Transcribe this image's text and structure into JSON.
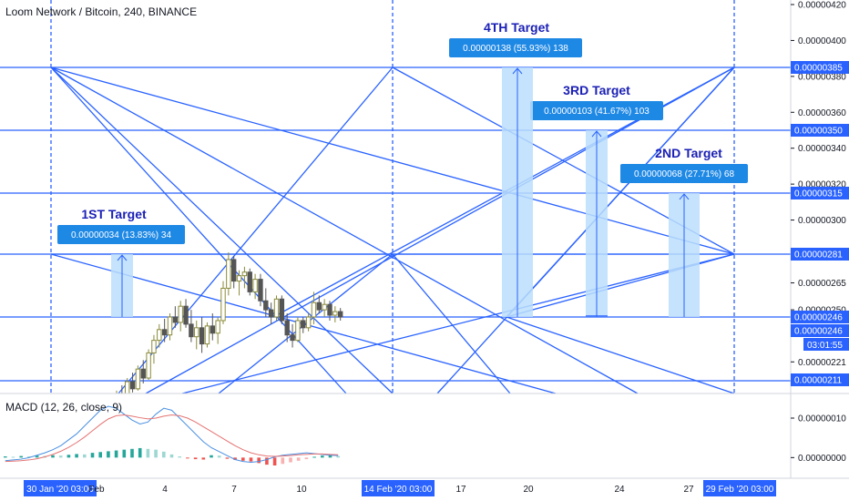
{
  "header": {
    "title": "Loom Network / Bitcoin, 240, BINANCE"
  },
  "macd": {
    "title": "MACD (12, 26, close, 9)",
    "ticks": [
      "0.00000010",
      "0.00000000"
    ]
  },
  "colors": {
    "up": "#26a69a",
    "down": "#ef5350",
    "gann": "#2962ff",
    "candle_up": "#8a8a3a",
    "candle_down": "#555555",
    "target_box": "#bbdefb",
    "target_label": "#1e88e5",
    "target_heading": "#1a1fb5",
    "macd_line": "#4a90e2",
    "signal_line": "#e57373",
    "hist_up": "#26a69a",
    "hist_down": "#ef5350"
  },
  "chart_data": [
    {
      "type": "candlestick",
      "ylim": [
        2.01e-06,
        4.22e-06
      ],
      "y_ticks": [
        "0.00000420",
        "0.00000400",
        "0.00000380",
        "0.00000360",
        "0.00000340",
        "0.00000320",
        "0.00000300",
        "0.00000281",
        "0.00000265",
        "0.00000250",
        "0.00000221",
        "0.00000211"
      ],
      "price_tags": [
        {
          "label": "0.00000385",
          "value": 3.85e-06
        },
        {
          "label": "0.00000350",
          "value": 3.5e-06
        },
        {
          "label": "0.00000315",
          "value": 3.15e-06
        },
        {
          "label": "0.00000281",
          "value": 2.81e-06
        },
        {
          "label": "0.00000246",
          "value": 2.46e-06
        },
        {
          "label": "0.00000211",
          "value": 2.11e-06
        }
      ],
      "last_price": {
        "label": "0.00000246",
        "countdown": "03:01:55"
      },
      "x_labels": [
        {
          "text": "30 Jan '20   03:00",
          "highlight": true
        },
        {
          "text": "Feb",
          "highlight": false
        },
        {
          "text": "4",
          "highlight": false
        },
        {
          "text": "7",
          "highlight": false
        },
        {
          "text": "10",
          "highlight": false
        },
        {
          "text": "14 Feb '20   03:00",
          "highlight": true
        },
        {
          "text": "17",
          "highlight": false
        },
        {
          "text": "20",
          "highlight": false
        },
        {
          "text": "24",
          "highlight": false
        },
        {
          "text": "27",
          "highlight": false
        },
        {
          "text": "29 Feb '20   03:00",
          "highlight": true
        }
      ],
      "targets": [
        {
          "title": "1ST Target",
          "label": "0.00000034 (13.83%) 34",
          "from": 2.46e-06,
          "to": 2.81e-06
        },
        {
          "title": "2ND Target",
          "label": "0.00000068 (27.71%) 68",
          "from": 2.46e-06,
          "to": 3.15e-06
        },
        {
          "title": "3RD Target",
          "label": "0.00000103 (41.67%) 103",
          "from": 2.46e-06,
          "to": 3.5e-06
        },
        {
          "title": "4TH Target",
          "label": "0.00000138 (55.93%) 138",
          "from": 2.46e-06,
          "to": 3.85e-06
        }
      ],
      "candles": [
        [
          1.98e-06,
          2.05e-06,
          1.96e-06,
          2.03e-06
        ],
        [
          2.03e-06,
          2.08e-06,
          1.99e-06,
          2.01e-06
        ],
        [
          2.01e-06,
          2.12e-06,
          2e-06,
          2.1e-06
        ],
        [
          2.1e-06,
          2.15e-06,
          2.04e-06,
          2.06e-06
        ],
        [
          2.06e-06,
          2.19e-06,
          2.05e-06,
          2.17e-06
        ],
        [
          2.17e-06,
          2.22e-06,
          2.09e-06,
          2.12e-06
        ],
        [
          2.12e-06,
          2.28e-06,
          2.11e-06,
          2.26e-06
        ],
        [
          2.26e-06,
          2.36e-06,
          2.2e-06,
          2.33e-06
        ],
        [
          2.33e-06,
          2.42e-06,
          2.29e-06,
          2.39e-06
        ],
        [
          2.39e-06,
          2.45e-06,
          2.32e-06,
          2.36e-06
        ],
        [
          2.36e-06,
          2.48e-06,
          2.33e-06,
          2.46e-06
        ],
        [
          2.46e-06,
          2.52e-06,
          2.4e-06,
          2.43e-06
        ],
        [
          2.43e-06,
          2.55e-06,
          2.38e-06,
          2.52e-06
        ],
        [
          2.52e-06,
          2.56e-06,
          2.4e-06,
          2.42e-06
        ],
        [
          2.42e-06,
          2.5e-06,
          2.32e-06,
          2.35e-06
        ],
        [
          2.35e-06,
          2.44e-06,
          2.28e-06,
          2.4e-06
        ],
        [
          2.4e-06,
          2.46e-06,
          2.26e-06,
          2.31e-06
        ],
        [
          2.31e-06,
          2.43e-06,
          2.29e-06,
          2.41e-06
        ],
        [
          2.41e-06,
          2.48e-06,
          2.33e-06,
          2.37e-06
        ],
        [
          2.37e-06,
          2.46e-06,
          2.31e-06,
          2.44e-06
        ],
        [
          2.44e-06,
          2.66e-06,
          2.42e-06,
          2.62e-06
        ],
        [
          2.62e-06,
          2.82e-06,
          2.58e-06,
          2.78e-06
        ],
        [
          2.78e-06,
          2.8e-06,
          2.62e-06,
          2.66e-06
        ],
        [
          2.66e-06,
          2.72e-06,
          2.58e-06,
          2.69e-06
        ],
        [
          2.69e-06,
          2.74e-06,
          2.62e-06,
          2.71e-06
        ],
        [
          2.71e-06,
          2.73e-06,
          2.58e-06,
          2.6e-06
        ],
        [
          2.6e-06,
          2.7e-06,
          2.56e-06,
          2.67e-06
        ],
        [
          2.67e-06,
          2.7e-06,
          2.52e-06,
          2.55e-06
        ],
        [
          2.55e-06,
          2.62e-06,
          2.46e-06,
          2.5e-06
        ],
        [
          2.5e-06,
          2.54e-06,
          2.42e-06,
          2.46e-06
        ],
        [
          2.46e-06,
          2.58e-06,
          2.44e-06,
          2.56e-06
        ],
        [
          2.56e-06,
          2.58e-06,
          2.42e-06,
          2.44e-06
        ],
        [
          2.44e-06,
          2.48e-06,
          2.32e-06,
          2.36e-06
        ],
        [
          2.36e-06,
          2.42e-06,
          2.29e-06,
          2.33e-06
        ],
        [
          2.33e-06,
          2.46e-06,
          2.32e-06,
          2.44e-06
        ],
        [
          2.44e-06,
          2.46e-06,
          2.37e-06,
          2.4e-06
        ],
        [
          2.4e-06,
          2.48e-06,
          2.38e-06,
          2.46e-06
        ],
        [
          2.46e-06,
          2.6e-06,
          2.42e-06,
          2.54e-06
        ],
        [
          2.54e-06,
          2.58e-06,
          2.48e-06,
          2.5e-06
        ],
        [
          2.5e-06,
          2.56e-06,
          2.46e-06,
          2.53e-06
        ],
        [
          2.53e-06,
          2.55e-06,
          2.44e-06,
          2.47e-06
        ],
        [
          2.47e-06,
          2.52e-06,
          2.43e-06,
          2.49e-06
        ],
        [
          2.49e-06,
          2.51e-06,
          2.44e-06,
          2.46e-06
        ]
      ]
    },
    {
      "type": "macd",
      "ylim": [
        -5e-08,
        1.6e-07
      ],
      "histogram": [
        3e-09,
        2e-09,
        4e-09,
        3e-09,
        5e-09,
        4e-09,
        6e-09,
        5e-09,
        7e-09,
        9e-09,
        8e-09,
        1.2e-08,
        1.4e-08,
        1.6e-08,
        1.8e-08,
        2e-08,
        2.2e-08,
        2.4e-08,
        2.2e-08,
        2e-08,
        1.5e-08,
        8e-09,
        3e-09,
        -2e-09,
        -4e-09,
        -5e-09,
        6e-09,
        5e-09,
        -3e-09,
        -6e-09,
        -8e-09,
        -1e-08,
        -1.4e-08,
        -1.8e-08,
        -2e-08,
        -1.6e-08,
        -1.2e-08,
        -8e-09,
        -4e-09,
        2e-09,
        5e-09,
        7e-09,
        4e-09
      ],
      "macd_line": [
        -8e-09,
        -6e-09,
        -4e-09,
        0.0,
        6e-09,
        1.2e-08,
        2e-08,
        3e-08,
        4.5e-08,
        6e-08,
        8e-08,
        1e-07,
        1.2e-07,
        1.3e-07,
        1.25e-07,
        1.1e-07,
        9.5e-08,
        8.5e-08,
        9e-08,
        1.1e-07,
        1.25e-07,
        1.2e-07,
        1e-07,
        8e-08,
        6e-08,
        4e-08,
        2.5e-08,
        1.5e-08,
        5e-09,
        -5e-09,
        -1e-08,
        -1.2e-08,
        -1e-08,
        -5e-09,
        2e-09,
        6e-09,
        8e-09,
        1e-08,
        1.2e-08,
        1e-08,
        8e-09,
        6e-09,
        5e-09
      ],
      "signal_line": [
        -1e-08,
        -9e-09,
        -8e-09,
        -6e-09,
        -3e-09,
        2e-09,
        8e-09,
        1.6e-08,
        2.6e-08,
        3.8e-08,
        5.2e-08,
        6.8e-08,
        8.4e-08,
        9.8e-08,
        1.06e-07,
        1.08e-07,
        1.05e-07,
        1.01e-07,
        9.8e-08,
        1e-07,
        1.05e-07,
        1.08e-07,
        1.06e-07,
        1e-07,
        9e-08,
        7.8e-08,
        6.6e-08,
        5.4e-08,
        4.2e-08,
        3e-08,
        2e-08,
        1.2e-08,
        7e-09,
        4e-09,
        3e-09,
        4e-09,
        5e-09,
        7e-09,
        8e-09,
        9e-09,
        9e-09,
        8e-09,
        7e-09
      ]
    }
  ]
}
